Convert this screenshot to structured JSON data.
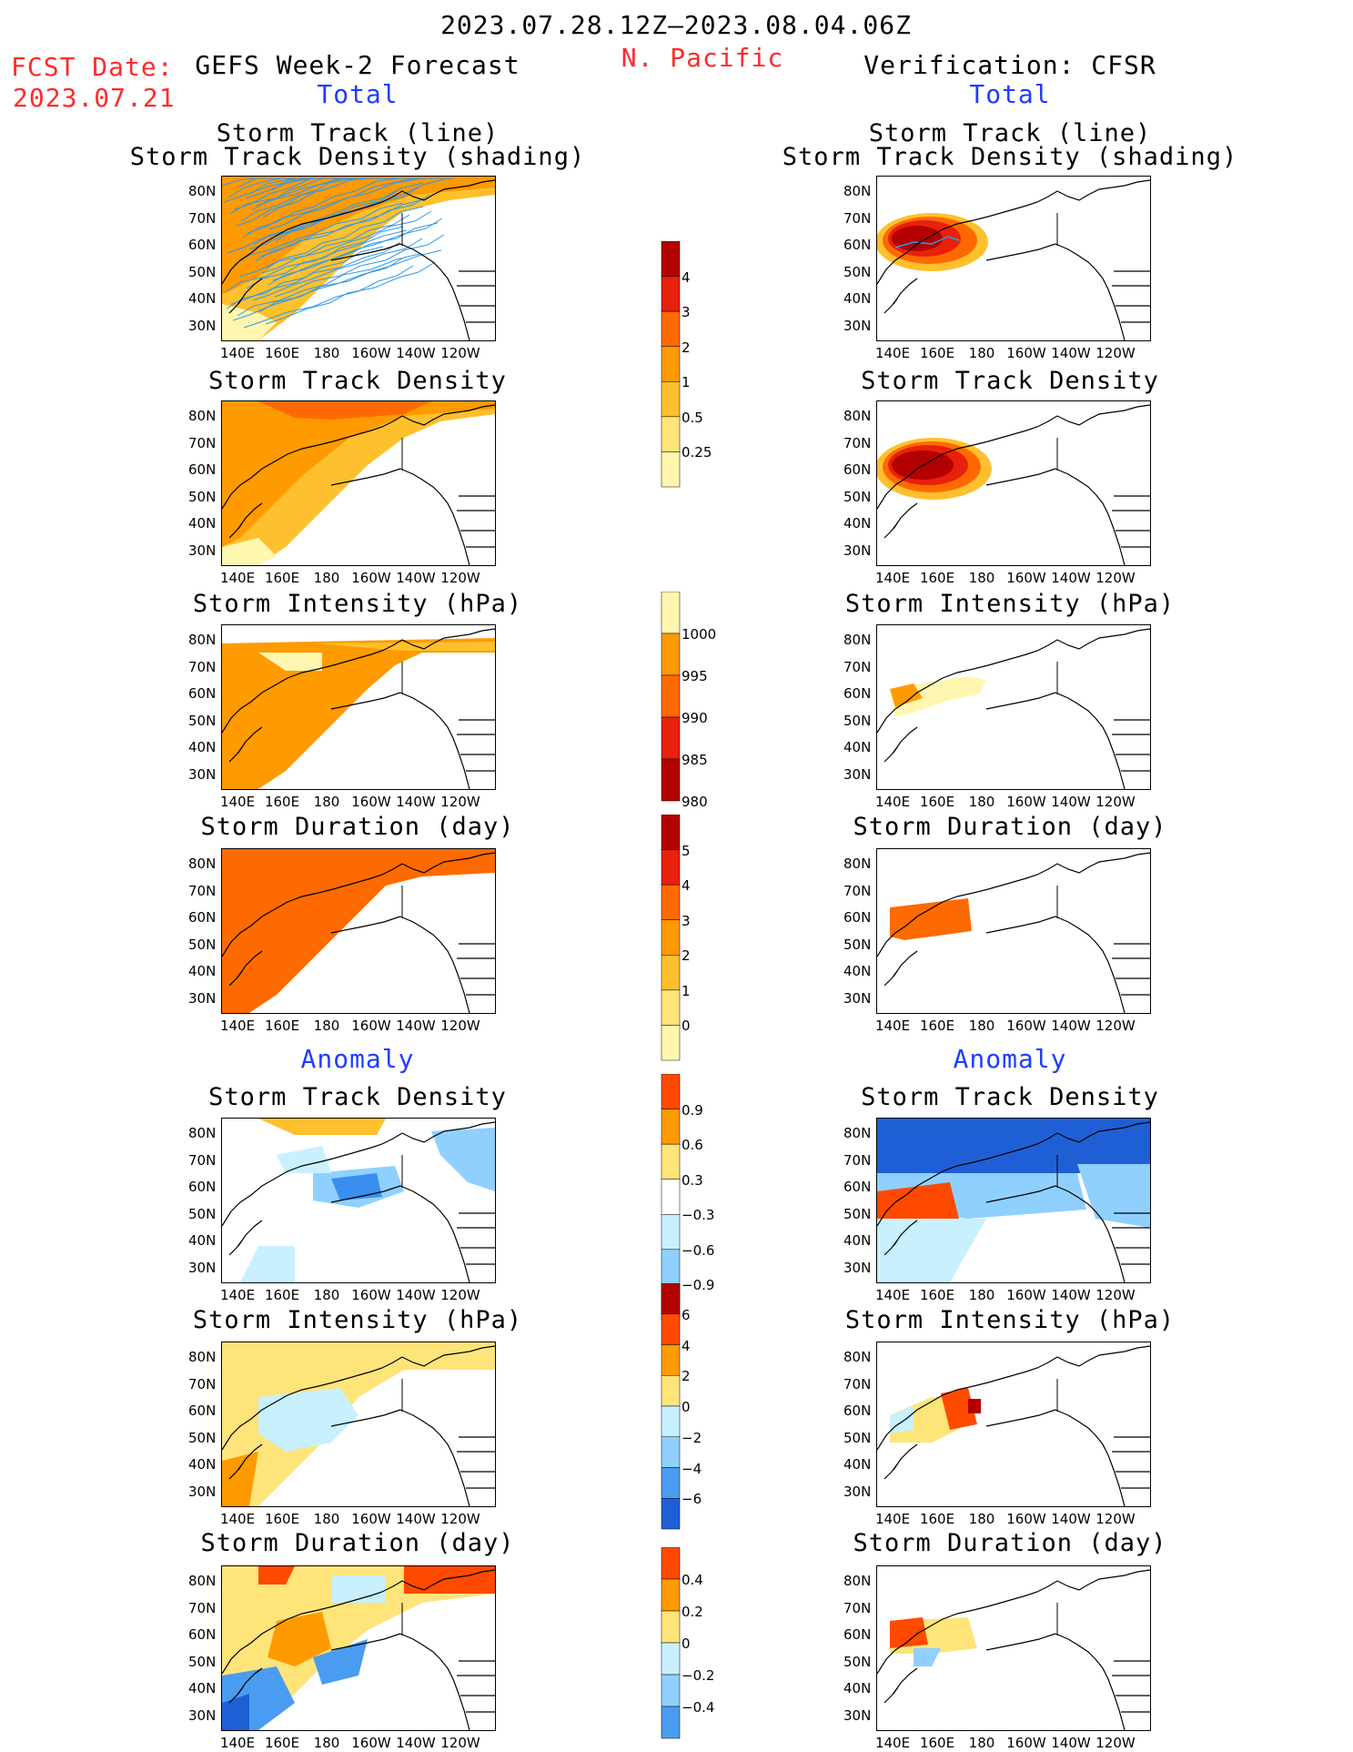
{
  "header": {
    "fcst_label": "FCST Date:",
    "fcst_date": "2023.07.21",
    "period": "2023.07.28.12Z–2023.08.04.06Z",
    "region": "N. Pacific",
    "left_title": "GEFS Week-2 Forecast",
    "right_title": "Verification: CFSR",
    "total_label": "Total",
    "anomaly_label": "Anomaly"
  },
  "axes": {
    "lat_ticks": [
      "80N",
      "70N",
      "60N",
      "50N",
      "40N",
      "30N"
    ],
    "lon_ticks": [
      "140E",
      "160E",
      "180",
      "160W",
      "140W",
      "120W"
    ]
  },
  "colors": {
    "y1": "#fff7b0",
    "y2": "#ffe47a",
    "o1": "#ffc02e",
    "o2": "#ff9a00",
    "o3": "#ff6a00",
    "r1": "#e8200c",
    "r2": "#b30000",
    "b1": "#c8f0ff",
    "b2": "#8fd0ff",
    "b3": "#4a9cf0",
    "b4": "#1f5fd6",
    "track": "#3399e6"
  },
  "chart_data": [
    {
      "type": "heatmap",
      "side": "forecast",
      "section": "Total",
      "title_line1": "Storm Track (line)",
      "title_line2": "Storm Track Density (shading)",
      "colorbar": "density"
    },
    {
      "type": "heatmap",
      "side": "verification",
      "section": "Total",
      "title_line1": "Storm Track (line)",
      "title_line2": "Storm Track Density (shading)",
      "colorbar": "density"
    },
    {
      "type": "heatmap",
      "side": "forecast",
      "section": "Total",
      "title": "Storm Track Density",
      "colorbar": "density"
    },
    {
      "type": "heatmap",
      "side": "verification",
      "section": "Total",
      "title": "Storm Track Density",
      "colorbar": "density"
    },
    {
      "type": "heatmap",
      "side": "forecast",
      "section": "Total",
      "title": "Storm Intensity (hPa)",
      "colorbar": "intensity"
    },
    {
      "type": "heatmap",
      "side": "verification",
      "section": "Total",
      "title": "Storm Intensity (hPa)",
      "colorbar": "intensity"
    },
    {
      "type": "heatmap",
      "side": "forecast",
      "section": "Total",
      "title": "Storm Duration (day)",
      "colorbar": "duration"
    },
    {
      "type": "heatmap",
      "side": "verification",
      "section": "Total",
      "title": "Storm Duration (day)",
      "colorbar": "duration"
    },
    {
      "type": "heatmap",
      "side": "forecast",
      "section": "Anomaly",
      "title": "Storm Track Density",
      "colorbar": "density_anom"
    },
    {
      "type": "heatmap",
      "side": "verification",
      "section": "Anomaly",
      "title": "Storm Track Density",
      "colorbar": "density_anom"
    },
    {
      "type": "heatmap",
      "side": "forecast",
      "section": "Anomaly",
      "title": "Storm Intensity (hPa)",
      "colorbar": "intensity_anom"
    },
    {
      "type": "heatmap",
      "side": "verification",
      "section": "Anomaly",
      "title": "Storm Intensity (hPa)",
      "colorbar": "intensity_anom"
    },
    {
      "type": "heatmap",
      "side": "forecast",
      "section": "Anomaly",
      "title": "Storm Duration (day)",
      "colorbar": "duration_anom"
    },
    {
      "type": "heatmap",
      "side": "verification",
      "section": "Anomaly",
      "title": "Storm Duration (day)",
      "colorbar": "duration_anom"
    }
  ],
  "colorbars": {
    "density": {
      "labels": [
        "4",
        "3",
        "2",
        "1",
        "0.5",
        "0.25"
      ],
      "colors": [
        "#b30000",
        "#e8200c",
        "#ff6a00",
        "#ff9a00",
        "#ffc02e",
        "#ffe47a",
        "#fff7b0"
      ]
    },
    "intensity": {
      "labels": [
        "1000",
        "995",
        "990",
        "985",
        "980"
      ],
      "colors": [
        "#fff7b0",
        "#ff9a00",
        "#ff6a00",
        "#e8200c",
        "#b30000"
      ]
    },
    "duration": {
      "labels": [
        "5",
        "4",
        "3",
        "2",
        "1",
        "0"
      ],
      "colors": [
        "#b30000",
        "#e8200c",
        "#ff6a00",
        "#ff9a00",
        "#ffc02e",
        "#ffe47a",
        "#fff7b0"
      ]
    },
    "density_anom": {
      "labels": [
        "0.9",
        "0.6",
        "0.3",
        "−0.3",
        "−0.6",
        "−0.9"
      ],
      "colors": [
        "#ff4a00",
        "#ff9a00",
        "#ffe47a",
        "#ffffff",
        "#c8f0ff",
        "#8fd0ff",
        "#3a8ef0"
      ]
    },
    "intensity_anom": {
      "labels": [
        "6",
        "4",
        "2",
        "0",
        "−2",
        "−4",
        "−6"
      ],
      "colors": [
        "#b30000",
        "#ff4a00",
        "#ff9a00",
        "#ffe47a",
        "#c8f0ff",
        "#8fd0ff",
        "#4a9cf0",
        "#1f5fd6"
      ]
    },
    "duration_anom": {
      "labels": [
        "0.4",
        "0.2",
        "0",
        "−0.2",
        "−0.4"
      ],
      "colors": [
        "#ff4a00",
        "#ff9a00",
        "#ffe47a",
        "#c8f0ff",
        "#8fd0ff",
        "#4a9cf0"
      ]
    }
  }
}
